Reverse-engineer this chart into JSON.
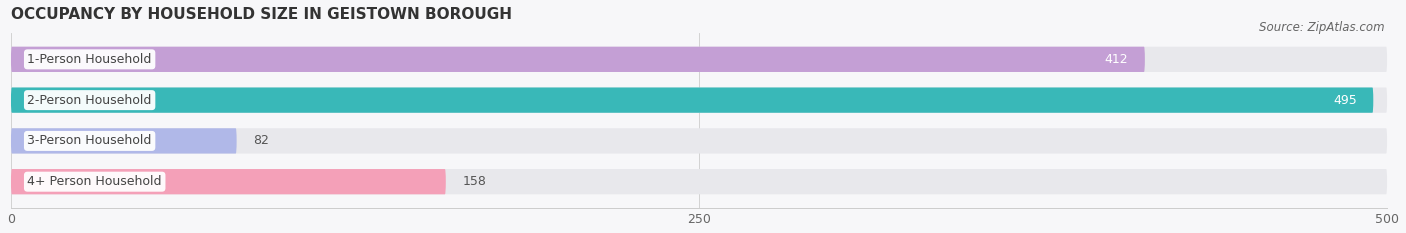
{
  "title": "OCCUPANCY BY HOUSEHOLD SIZE IN GEISTOWN BOROUGH",
  "source": "Source: ZipAtlas.com",
  "categories": [
    "1-Person Household",
    "2-Person Household",
    "3-Person Household",
    "4+ Person Household"
  ],
  "values": [
    412,
    495,
    82,
    158
  ],
  "bar_colors": [
    "#c49fd5",
    "#39b8b8",
    "#b0b8e8",
    "#f4a0b8"
  ],
  "track_color": "#e8e8ec",
  "label_bg_color": "#ffffff",
  "xlim": [
    0,
    500
  ],
  "xmax": 500,
  "xticks": [
    0,
    250,
    500
  ],
  "bar_height": 0.62,
  "figsize": [
    14.06,
    2.33
  ],
  "dpi": 100,
  "title_fontsize": 11,
  "label_fontsize": 9,
  "value_fontsize": 9,
  "tick_fontsize": 9,
  "source_fontsize": 8.5,
  "bg_color": "#f7f7f9"
}
